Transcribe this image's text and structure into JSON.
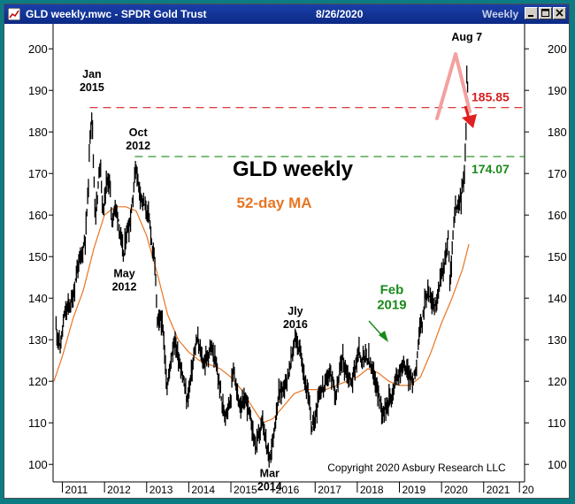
{
  "window": {
    "title": "GLD weekly.mwc - SPDR Gold Trust",
    "date": "8/26/2020",
    "period": "Weekly"
  },
  "colors": {
    "price": "#000000",
    "moving_average": "#e87522",
    "resistance_line": "#d62020",
    "support_line": "#1a8a1a",
    "arrow_up": "#f4a0a0",
    "arrow_down": "#e02020",
    "feb_label": "#1a8a1a",
    "ma_label": "#e87522"
  },
  "chart_data": {
    "type": "line",
    "title": "GLD weekly",
    "subtitle": "52-day MA",
    "xlabel": "",
    "ylabel": "",
    "xlim": [
      2010.8,
      2021.95
    ],
    "ylim": [
      96,
      206
    ],
    "grid": false,
    "x_ticks": [
      "2011",
      "2012",
      "2013",
      "2014",
      "2015",
      "2016",
      "2017",
      "2018",
      "2019",
      "2020",
      "2021",
      "20"
    ],
    "x_tick_values": [
      2011,
      2012,
      2013,
      2014,
      2015,
      2016,
      2017,
      2018,
      2019,
      2020,
      2021,
      2021.85
    ],
    "y_ticks": [
      100,
      110,
      120,
      130,
      140,
      150,
      160,
      170,
      180,
      190,
      200
    ],
    "series": [
      {
        "name": "GLD weekly",
        "kind": "price",
        "points": [
          [
            2010.85,
            133
          ],
          [
            2010.95,
            128
          ],
          [
            2011.05,
            136
          ],
          [
            2011.15,
            138
          ],
          [
            2011.25,
            140
          ],
          [
            2011.35,
            147
          ],
          [
            2011.45,
            150
          ],
          [
            2011.55,
            155
          ],
          [
            2011.62,
            168
          ],
          [
            2011.66,
            180
          ],
          [
            2011.7,
            185
          ],
          [
            2011.74,
            172
          ],
          [
            2011.78,
            160
          ],
          [
            2011.84,
            165
          ],
          [
            2011.9,
            174
          ],
          [
            2011.96,
            160
          ],
          [
            2012.05,
            168
          ],
          [
            2012.12,
            168
          ],
          [
            2012.18,
            158
          ],
          [
            2012.24,
            162
          ],
          [
            2012.32,
            160
          ],
          [
            2012.4,
            153
          ],
          [
            2012.46,
            150
          ],
          [
            2012.52,
            156
          ],
          [
            2012.6,
            158
          ],
          [
            2012.67,
            164
          ],
          [
            2012.74,
            172
          ],
          [
            2012.8,
            168
          ],
          [
            2012.86,
            165
          ],
          [
            2012.92,
            163
          ],
          [
            2013.0,
            161
          ],
          [
            2013.08,
            158
          ],
          [
            2013.14,
            152
          ],
          [
            2013.2,
            148
          ],
          [
            2013.26,
            133
          ],
          [
            2013.34,
            136
          ],
          [
            2013.42,
            128
          ],
          [
            2013.49,
            118
          ],
          [
            2013.58,
            126
          ],
          [
            2013.66,
            130
          ],
          [
            2013.73,
            127
          ],
          [
            2013.8,
            124
          ],
          [
            2013.88,
            120
          ],
          [
            2013.96,
            115
          ],
          [
            2014.05,
            121
          ],
          [
            2014.12,
            126
          ],
          [
            2014.2,
            130
          ],
          [
            2014.28,
            127
          ],
          [
            2014.36,
            124
          ],
          [
            2014.44,
            126
          ],
          [
            2014.52,
            128
          ],
          [
            2014.6,
            126
          ],
          [
            2014.68,
            122
          ],
          [
            2014.76,
            117
          ],
          [
            2014.84,
            112
          ],
          [
            2014.92,
            114
          ],
          [
            2015.0,
            116
          ],
          [
            2015.06,
            124
          ],
          [
            2015.12,
            118
          ],
          [
            2015.2,
            115
          ],
          [
            2015.28,
            114
          ],
          [
            2015.36,
            116
          ],
          [
            2015.44,
            112
          ],
          [
            2015.52,
            108
          ],
          [
            2015.6,
            104
          ],
          [
            2015.68,
            108
          ],
          [
            2015.76,
            110
          ],
          [
            2015.84,
            104
          ],
          [
            2015.92,
            102
          ],
          [
            2016.0,
            106
          ],
          [
            2016.07,
            112
          ],
          [
            2016.14,
            117
          ],
          [
            2016.22,
            118
          ],
          [
            2016.3,
            120
          ],
          [
            2016.38,
            122
          ],
          [
            2016.46,
            127
          ],
          [
            2016.53,
            131
          ],
          [
            2016.6,
            128
          ],
          [
            2016.68,
            126
          ],
          [
            2016.76,
            120
          ],
          [
            2016.84,
            116
          ],
          [
            2016.92,
            109
          ],
          [
            2017.0,
            111
          ],
          [
            2017.08,
            117
          ],
          [
            2017.16,
            118
          ],
          [
            2017.24,
            119
          ],
          [
            2017.32,
            122
          ],
          [
            2017.4,
            121
          ],
          [
            2017.48,
            117
          ],
          [
            2017.56,
            120
          ],
          [
            2017.64,
            126
          ],
          [
            2017.72,
            123
          ],
          [
            2017.8,
            121
          ],
          [
            2017.88,
            120
          ],
          [
            2017.96,
            124
          ],
          [
            2018.04,
            127
          ],
          [
            2018.12,
            125
          ],
          [
            2018.2,
            126
          ],
          [
            2018.28,
            125
          ],
          [
            2018.36,
            122
          ],
          [
            2018.44,
            120
          ],
          [
            2018.52,
            116
          ],
          [
            2018.6,
            113
          ],
          [
            2018.68,
            114
          ],
          [
            2018.76,
            116
          ],
          [
            2018.84,
            117
          ],
          [
            2018.92,
            121
          ],
          [
            2019.0,
            122
          ],
          [
            2019.08,
            124
          ],
          [
            2019.16,
            123
          ],
          [
            2019.24,
            121
          ],
          [
            2019.32,
            120
          ],
          [
            2019.4,
            124
          ],
          [
            2019.46,
            131
          ],
          [
            2019.54,
            134
          ],
          [
            2019.62,
            141
          ],
          [
            2019.7,
            141
          ],
          [
            2019.78,
            139
          ],
          [
            2019.86,
            138
          ],
          [
            2019.94,
            142
          ],
          [
            2020.02,
            147
          ],
          [
            2020.1,
            150
          ],
          [
            2020.16,
            155
          ],
          [
            2020.2,
            142
          ],
          [
            2020.24,
            150
          ],
          [
            2020.32,
            161
          ],
          [
            2020.4,
            162
          ],
          [
            2020.48,
            165
          ],
          [
            2020.54,
            170
          ],
          [
            2020.58,
            180
          ],
          [
            2020.6,
            194
          ],
          [
            2020.63,
            187
          ],
          [
            2020.65,
            182
          ]
        ]
      },
      {
        "name": "52-day MA",
        "kind": "moving_average",
        "points": [
          [
            2010.8,
            120
          ],
          [
            2011.0,
            126
          ],
          [
            2011.25,
            135
          ],
          [
            2011.5,
            142
          ],
          [
            2011.75,
            152
          ],
          [
            2012.0,
            160
          ],
          [
            2012.25,
            162
          ],
          [
            2012.5,
            162
          ],
          [
            2012.75,
            161
          ],
          [
            2013.0,
            155
          ],
          [
            2013.25,
            146
          ],
          [
            2013.5,
            136
          ],
          [
            2013.75,
            130
          ],
          [
            2014.0,
            127
          ],
          [
            2014.25,
            125
          ],
          [
            2014.5,
            124
          ],
          [
            2014.75,
            123
          ],
          [
            2015.0,
            121
          ],
          [
            2015.25,
            118
          ],
          [
            2015.5,
            114
          ],
          [
            2015.75,
            110
          ],
          [
            2016.0,
            111
          ],
          [
            2016.25,
            114
          ],
          [
            2016.5,
            117
          ],
          [
            2016.75,
            118
          ],
          [
            2017.0,
            118
          ],
          [
            2017.25,
            118
          ],
          [
            2017.5,
            119
          ],
          [
            2017.75,
            120
          ],
          [
            2018.0,
            121
          ],
          [
            2018.25,
            123
          ],
          [
            2018.5,
            122
          ],
          [
            2018.75,
            120
          ],
          [
            2019.0,
            119
          ],
          [
            2019.25,
            119
          ],
          [
            2019.5,
            121
          ],
          [
            2019.75,
            127
          ],
          [
            2020.0,
            134
          ],
          [
            2020.25,
            140
          ],
          [
            2020.5,
            147
          ],
          [
            2020.65,
            153
          ]
        ]
      }
    ],
    "levels": [
      {
        "name": "resistance",
        "value": 185.85,
        "label": "185.85",
        "line_from": 2011.65
      },
      {
        "name": "support",
        "value": 174.07,
        "label": "174.07",
        "line_from": 2012.72
      }
    ],
    "annotations": [
      {
        "id": "jan-2015",
        "lines": [
          "Jan",
          "2015"
        ],
        "x": 2011.7,
        "y": 193
      },
      {
        "id": "oct-2012",
        "lines": [
          "Oct",
          "2012"
        ],
        "x": 2012.8,
        "y": 179
      },
      {
        "id": "may-2012",
        "lines": [
          "May",
          "2012"
        ],
        "x": 2012.47,
        "y": 145
      },
      {
        "id": "jly-2016",
        "lines": [
          "Jly",
          "2016"
        ],
        "x": 2016.53,
        "y": 136
      },
      {
        "id": "mar-2014",
        "lines": [
          "Mar",
          "2014"
        ],
        "x": 2015.92,
        "y": 97
      },
      {
        "id": "aug-7",
        "lines": [
          "Aug 7"
        ],
        "x": 2020.6,
        "y": 202
      },
      {
        "id": "feb-2019",
        "lines": [
          "Feb",
          "2019"
        ],
        "x": 2018.82,
        "y": 141
      }
    ],
    "chart_title": "GLD weekly",
    "ma_label": "52-day MA",
    "copyright": "Copyright 2020 Asbury Research LLC"
  }
}
